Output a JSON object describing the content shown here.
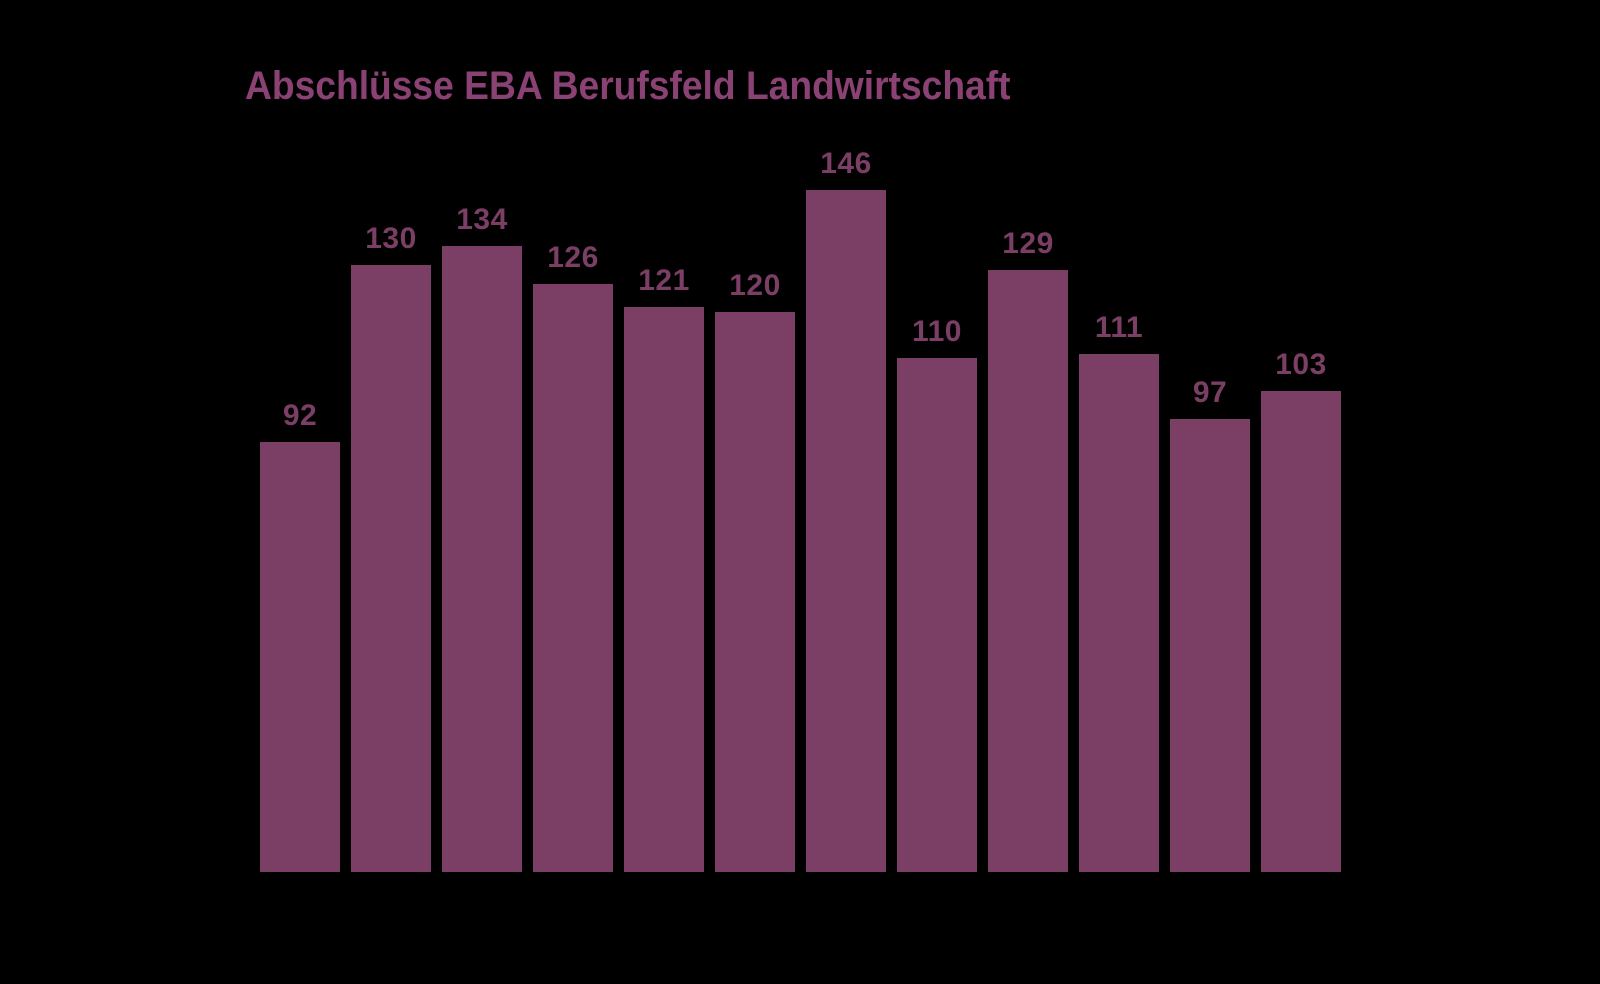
{
  "chart_data": {
    "type": "bar",
    "title": "Abschlüsse EBA Berufsfeld Landwirtschaft",
    "values": [
      92,
      130,
      134,
      126,
      121,
      120,
      146,
      110,
      129,
      111,
      97,
      103
    ],
    "value_labels": [
      "92",
      "130",
      "134",
      "126",
      "121",
      "120",
      "146",
      "110",
      "129",
      "111",
      "97",
      "103"
    ],
    "xlabel": "",
    "ylabel": "",
    "x_tick_labels_visible": false,
    "axes_visible": false,
    "grid": false,
    "legend": "none",
    "value_labels_position": "above-bars",
    "colors": {
      "background": "#000000",
      "bar": "#7B3E64",
      "value_label": "#7B3E64",
      "title": "#8A4173"
    },
    "layout": {
      "bar_count": 12,
      "pixels_per_unit": 4.67
    }
  }
}
